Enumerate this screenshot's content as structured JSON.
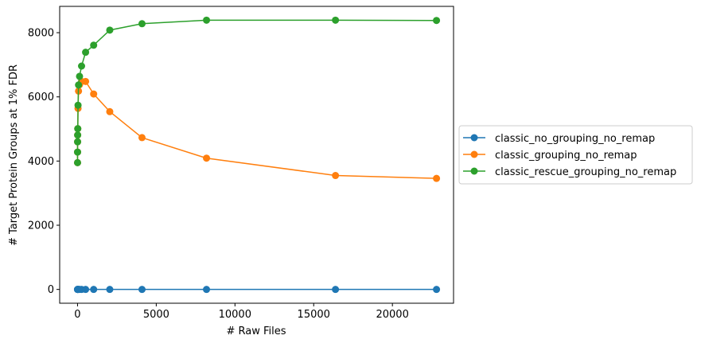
{
  "chart_data": {
    "type": "line",
    "title": "",
    "xlabel": "# Raw Files",
    "ylabel": "# Target Protein Groups at 1% FDR",
    "xlim": [
      -1134,
      23883
    ],
    "ylim": [
      -430,
      8820
    ],
    "xticks": [
      0,
      5000,
      10000,
      15000,
      20000
    ],
    "xtick_labels": [
      "0",
      "5000",
      "10000",
      "15000",
      "20000"
    ],
    "yticks": [
      0,
      2000,
      4000,
      6000,
      8000
    ],
    "ytick_labels": [
      "0",
      "2000",
      "4000",
      "6000",
      "8000"
    ],
    "grid": false,
    "legend_position": "right-outside",
    "series": [
      {
        "name": "classic_no_grouping_no_remap",
        "color": "#1f77b4",
        "x": [
          1,
          2,
          4,
          8,
          16,
          32,
          64,
          128,
          256,
          512,
          1024,
          2048,
          4096,
          8192,
          16384,
          22800
        ],
        "y": [
          0,
          0,
          0,
          0,
          0,
          0,
          0,
          0,
          0,
          0,
          0,
          0,
          0,
          0,
          0,
          0
        ]
      },
      {
        "name": "classic_grouping_no_remap",
        "color": "#ff7f0e",
        "x": [
          1,
          2,
          4,
          8,
          16,
          32,
          64,
          128,
          256,
          512,
          1024,
          2048,
          4096,
          8192,
          16384,
          22800
        ],
        "y": [
          3950,
          4280,
          4600,
          4810,
          5010,
          5640,
          6180,
          6380,
          6480,
          6480,
          6090,
          5540,
          4730,
          4090,
          3550,
          3460
        ]
      },
      {
        "name": "classic_rescue_grouping_no_remap",
        "color": "#2ca02c",
        "x": [
          1,
          2,
          4,
          8,
          16,
          32,
          64,
          128,
          256,
          512,
          1024,
          2048,
          4096,
          8192,
          16384,
          22800
        ],
        "y": [
          3950,
          4280,
          4600,
          4810,
          5010,
          5740,
          6370,
          6640,
          6960,
          7390,
          7610,
          8080,
          8280,
          8390,
          8390,
          8380
        ]
      }
    ]
  }
}
